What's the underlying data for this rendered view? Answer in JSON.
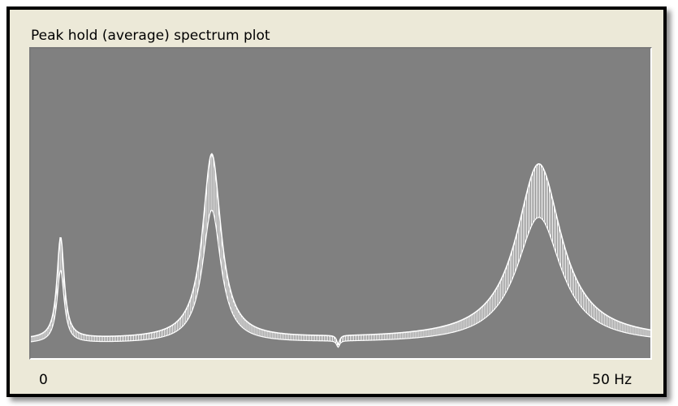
{
  "window": {
    "title": "Peak hold (average) spectrum plot"
  },
  "chart_data": {
    "type": "line",
    "title": "Peak hold (average) spectrum plot",
    "xlabel": "",
    "ylabel": "",
    "x_tick_labels": [
      "0",
      "50 Hz"
    ],
    "xlim": [
      0,
      50
    ],
    "ylim": [
      0,
      1
    ],
    "grid": false,
    "line_color": "#ffffff",
    "background_color": "#808080",
    "baseline": 0.05,
    "peaks": [
      {
        "freq": 2.4,
        "amplitude": 0.34,
        "width": 0.35
      },
      {
        "freq": 14.6,
        "amplitude": 0.62,
        "width": 0.9
      },
      {
        "freq": 41.0,
        "amplitude": 0.59,
        "width": 2.2
      }
    ],
    "dip_at": 24.8
  }
}
